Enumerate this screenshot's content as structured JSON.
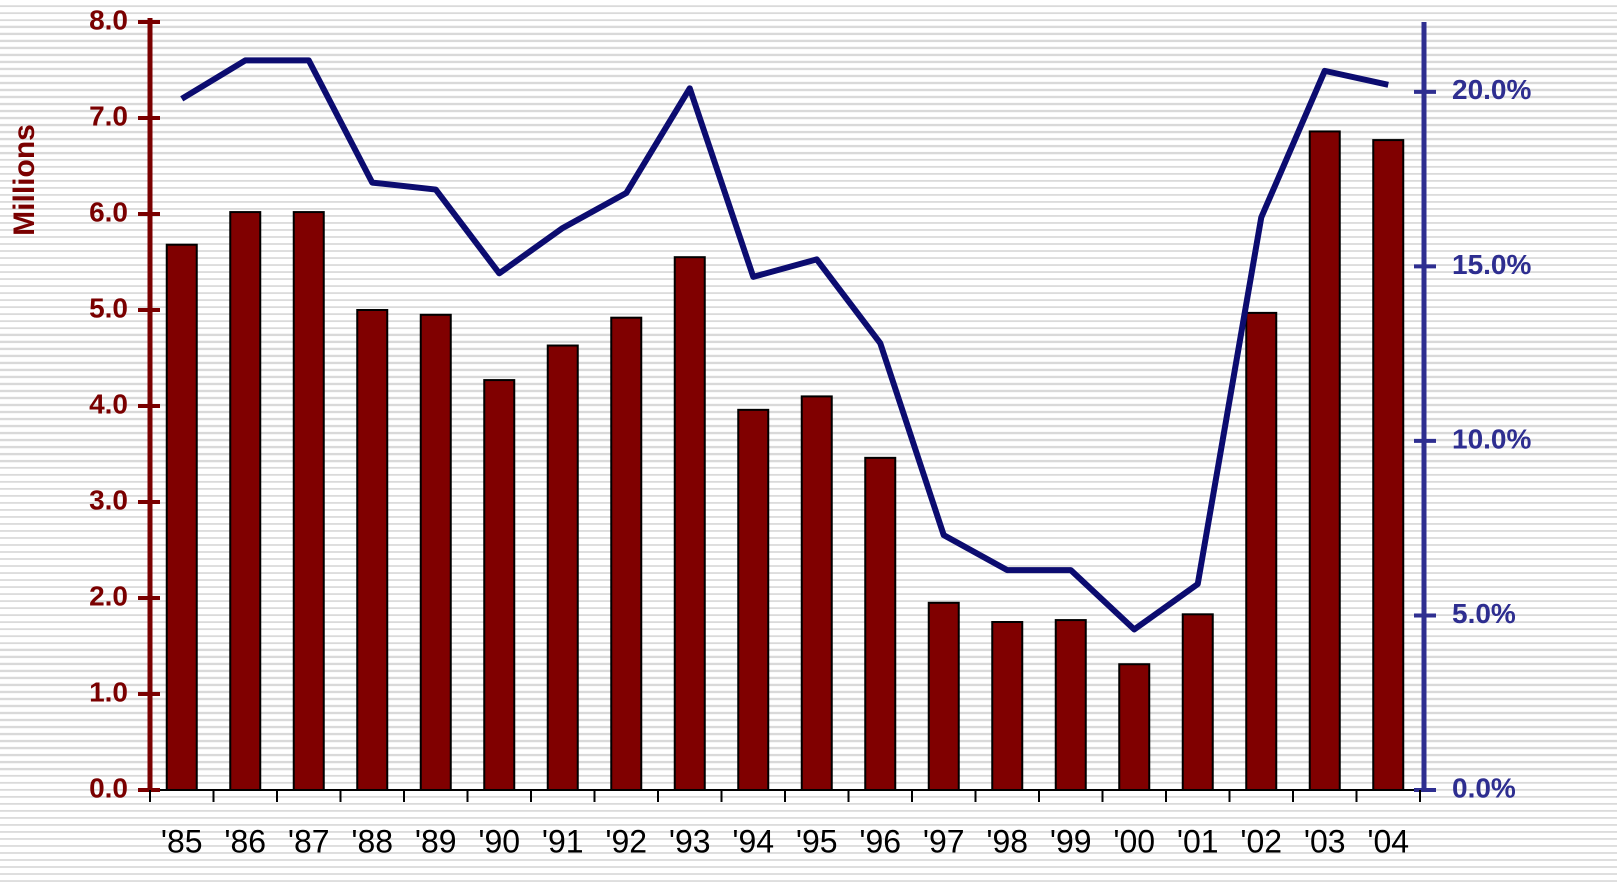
{
  "chart_data": {
    "type": "bar_line",
    "y_label": "Millions",
    "categories": [
      "'85",
      "'86",
      "'87",
      "'88",
      "'89",
      "'90",
      "'91",
      "'92",
      "'93",
      "'94",
      "'95",
      "'96",
      "'97",
      "'98",
      "'99",
      "'00",
      "'01",
      "'02",
      "'03",
      "'04"
    ],
    "series": [
      {
        "type": "bar",
        "color": "#800000",
        "values": [
          5.68,
          6.02,
          6.02,
          5.0,
          4.95,
          4.27,
          4.63,
          4.92,
          5.55,
          3.96,
          4.1,
          3.46,
          1.95,
          1.75,
          1.77,
          1.31,
          1.83,
          4.97,
          6.86,
          6.77
        ]
      },
      {
        "type": "line",
        "axis": "y2",
        "color": "#0c0c70",
        "values": [
          19.8,
          20.9,
          20.9,
          17.4,
          17.2,
          14.8,
          16.1,
          17.1,
          20.1,
          14.7,
          15.2,
          12.8,
          7.3,
          6.3,
          6.3,
          4.6,
          5.9,
          16.4,
          20.6,
          20.2
        ]
      }
    ],
    "ylim": [
      0,
      8
    ],
    "yticks": [
      {
        "value": 0,
        "label": "0.0"
      },
      {
        "value": 1,
        "label": "1.0"
      },
      {
        "value": 2,
        "label": "2.0"
      },
      {
        "value": 3,
        "label": "3.0"
      },
      {
        "value": 4,
        "label": "4.0"
      },
      {
        "value": 5,
        "label": "5.0"
      },
      {
        "value": 6,
        "label": "6.0"
      },
      {
        "value": 7,
        "label": "7.0"
      },
      {
        "value": 8,
        "label": "8.0"
      }
    ],
    "y_axis_color": "#7a0000",
    "y2lim": [
      0,
      22
    ],
    "y2ticks": [
      {
        "value": 0,
        "label": "0.0%"
      },
      {
        "value": 5,
        "label": "5.0%"
      },
      {
        "value": 10,
        "label": "10.0%"
      },
      {
        "value": 15,
        "label": "15.0%"
      },
      {
        "value": 20,
        "label": "20.0%"
      }
    ],
    "y2_axis_color": "#2e2e90"
  }
}
